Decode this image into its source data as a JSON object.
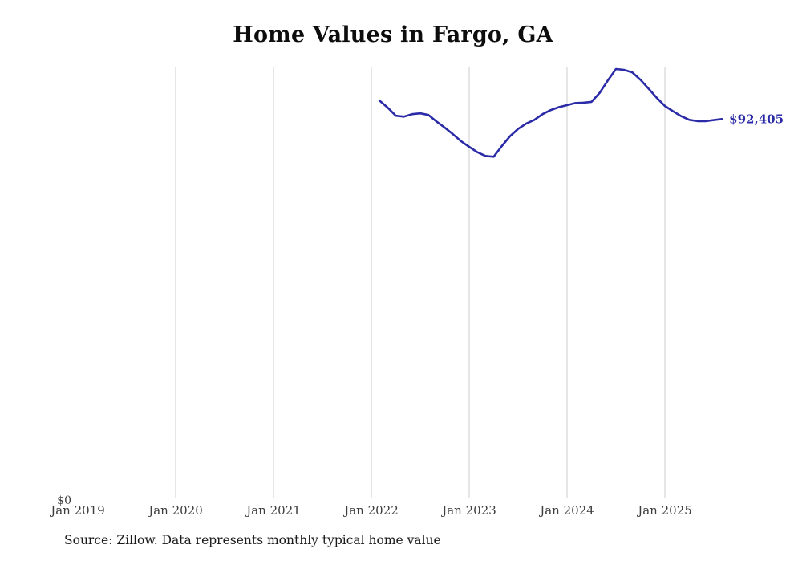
{
  "source_note": "Source: Zillow. Data represents monthly typical home value",
  "chart_data": {
    "type": "line",
    "title": "Home Values in Fargo, GA",
    "xlabel": "",
    "ylabel": "",
    "ylim": [
      0,
      105000
    ],
    "grid": true,
    "y_zero_label": "$0",
    "end_label": "$92,405",
    "line_color": "#2b2ba8",
    "gridline_color": "#cccccc",
    "tick_label_color": "#3d3d3d",
    "x_ticks": [
      {
        "label": "Jan 2019",
        "month": "2019-01"
      },
      {
        "label": "Jan 2020",
        "month": "2020-01"
      },
      {
        "label": "Jan 2021",
        "month": "2021-01"
      },
      {
        "label": "Jan 2022",
        "month": "2022-01"
      },
      {
        "label": "Jan 2023",
        "month": "2023-01"
      },
      {
        "label": "Jan 2024",
        "month": "2024-01"
      },
      {
        "label": "Jan 2025",
        "month": "2025-01"
      }
    ],
    "x_gridlines": [
      "2020-01",
      "2021-01",
      "2022-01",
      "2023-01",
      "2024-01",
      "2025-01"
    ],
    "series": [
      {
        "name": "Typical home value",
        "points": [
          {
            "month": "2022-02",
            "value": 96900
          },
          {
            "month": "2022-03",
            "value": 95200
          },
          {
            "month": "2022-04",
            "value": 93200
          },
          {
            "month": "2022-05",
            "value": 93000
          },
          {
            "month": "2022-06",
            "value": 93600
          },
          {
            "month": "2022-07",
            "value": 93800
          },
          {
            "month": "2022-08",
            "value": 93400
          },
          {
            "month": "2022-09",
            "value": 91800
          },
          {
            "month": "2022-10",
            "value": 90300
          },
          {
            "month": "2022-11",
            "value": 88700
          },
          {
            "month": "2022-12",
            "value": 87000
          },
          {
            "month": "2023-01",
            "value": 85600
          },
          {
            "month": "2023-02",
            "value": 84300
          },
          {
            "month": "2023-03",
            "value": 83400
          },
          {
            "month": "2023-04",
            "value": 83200
          },
          {
            "month": "2023-05",
            "value": 85800
          },
          {
            "month": "2023-06",
            "value": 88200
          },
          {
            "month": "2023-07",
            "value": 90000
          },
          {
            "month": "2023-08",
            "value": 91300
          },
          {
            "month": "2023-09",
            "value": 92200
          },
          {
            "month": "2023-10",
            "value": 93600
          },
          {
            "month": "2023-11",
            "value": 94600
          },
          {
            "month": "2023-12",
            "value": 95300
          },
          {
            "month": "2024-01",
            "value": 95800
          },
          {
            "month": "2024-02",
            "value": 96300
          },
          {
            "month": "2024-03",
            "value": 96400
          },
          {
            "month": "2024-04",
            "value": 96600
          },
          {
            "month": "2024-05",
            "value": 98800
          },
          {
            "month": "2024-06",
            "value": 101800
          },
          {
            "month": "2024-07",
            "value": 104600
          },
          {
            "month": "2024-08",
            "value": 104400
          },
          {
            "month": "2024-09",
            "value": 103800
          },
          {
            "month": "2024-10",
            "value": 102000
          },
          {
            "month": "2024-11",
            "value": 99800
          },
          {
            "month": "2024-12",
            "value": 97600
          },
          {
            "month": "2025-01",
            "value": 95600
          },
          {
            "month": "2025-02",
            "value": 94300
          },
          {
            "month": "2025-03",
            "value": 93100
          },
          {
            "month": "2025-04",
            "value": 92200
          },
          {
            "month": "2025-05",
            "value": 91900
          },
          {
            "month": "2025-06",
            "value": 91900
          },
          {
            "month": "2025-07",
            "value": 92150
          },
          {
            "month": "2025-08",
            "value": 92405
          }
        ]
      }
    ]
  }
}
